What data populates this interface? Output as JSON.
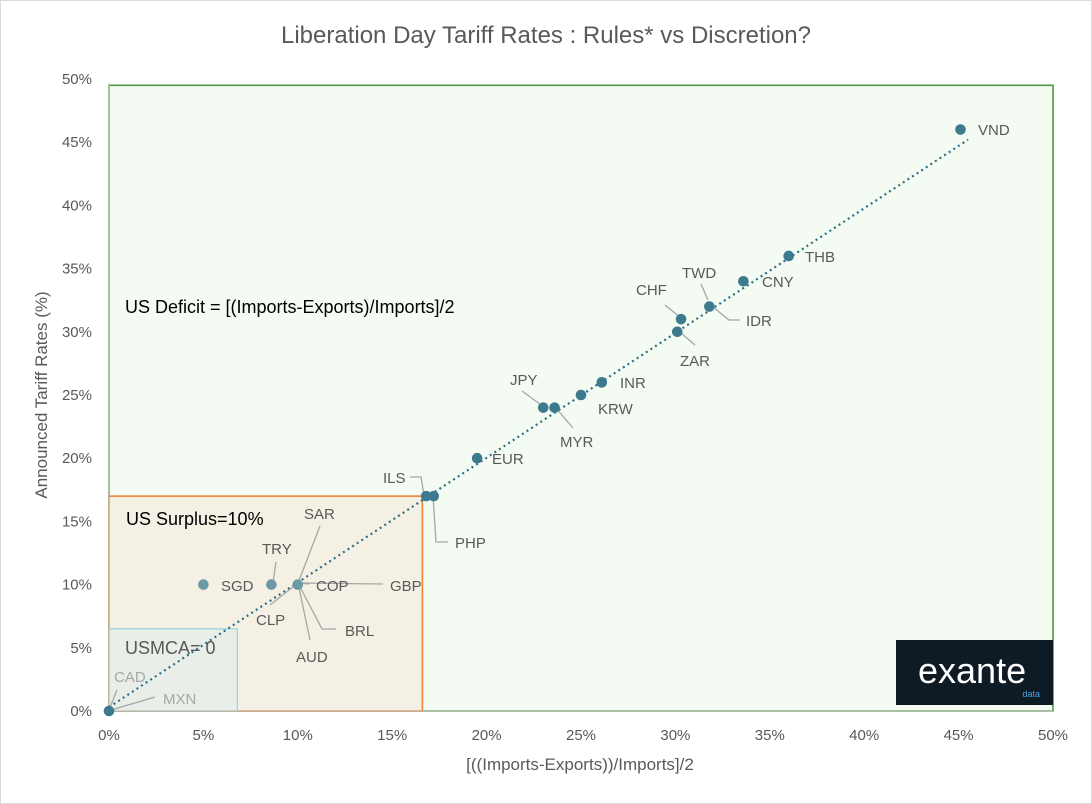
{
  "chart_data": {
    "type": "scatter",
    "title": "Liberation Day Tariff Rates : Rules* vs Discretion?",
    "xlabel": "[((Imports-Exports))/Imports]/2",
    "ylabel": "Announced Tariff Rates (%)",
    "xlim": [
      0,
      50
    ],
    "ylim": [
      0,
      50
    ],
    "x_ticks": [
      "0%",
      "5%",
      "10%",
      "15%",
      "20%",
      "25%",
      "30%",
      "35%",
      "40%",
      "45%",
      "50%"
    ],
    "y_ticks": [
      "0%",
      "5%",
      "10%",
      "15%",
      "20%",
      "25%",
      "30%",
      "35%",
      "40%",
      "45%",
      "50%"
    ],
    "grid": false,
    "trendline": "dotted linear",
    "points": [
      {
        "label": "VND",
        "x": 45.1,
        "y": 46
      },
      {
        "label": "THB",
        "x": 36.0,
        "y": 36
      },
      {
        "label": "CNY",
        "x": 33.6,
        "y": 34
      },
      {
        "label": "TWD",
        "x": 31.8,
        "y": 32
      },
      {
        "label": "IDR",
        "x": 31.8,
        "y": 32
      },
      {
        "label": "CHF",
        "x": 30.3,
        "y": 31
      },
      {
        "label": "ZAR",
        "x": 30.1,
        "y": 30
      },
      {
        "label": "INR",
        "x": 26.1,
        "y": 26
      },
      {
        "label": "KRW",
        "x": 25.0,
        "y": 25
      },
      {
        "label": "JPY",
        "x": 23.0,
        "y": 24
      },
      {
        "label": "MYR",
        "x": 23.6,
        "y": 24
      },
      {
        "label": "EUR",
        "x": 19.5,
        "y": 20
      },
      {
        "label": "ILS",
        "x": 16.8,
        "y": 17
      },
      {
        "label": "PHP",
        "x": 17.2,
        "y": 17
      },
      {
        "label": "SGD",
        "x": 5.0,
        "y": 10
      },
      {
        "label": "TRY",
        "x": 8.6,
        "y": 10
      },
      {
        "label": "SAR",
        "x": 10.0,
        "y": 10
      },
      {
        "label": "COP",
        "x": 10.0,
        "y": 10
      },
      {
        "label": "GBP",
        "x": 10.0,
        "y": 10
      },
      {
        "label": "CLP",
        "x": 10.0,
        "y": 10
      },
      {
        "label": "BRL",
        "x": 10.0,
        "y": 10
      },
      {
        "label": "AUD",
        "x": 10.0,
        "y": 10
      },
      {
        "label": "CAD",
        "x": 0,
        "y": 0
      },
      {
        "label": "MXN",
        "x": 0,
        "y": 0
      }
    ],
    "regions": [
      {
        "label": "US Deficit = [(Imports-Exports)/Imports]/2",
        "x": [
          0,
          50
        ],
        "y": [
          0,
          49.5
        ],
        "color": "#4e9a3b",
        "fill": "#f4fbf2"
      },
      {
        "label": "US Surplus=10%",
        "x": [
          0,
          16.6
        ],
        "y": [
          0,
          17
        ],
        "color": "#e8863b",
        "fill": "#f5f0e4"
      },
      {
        "label": "USMCA= 0",
        "x": [
          0,
          6.8
        ],
        "y": [
          0,
          6.5
        ],
        "color": "#9fd3dd",
        "fill": "#e9eee9"
      }
    ],
    "logo": {
      "main": "exante",
      "sub": "data"
    }
  }
}
